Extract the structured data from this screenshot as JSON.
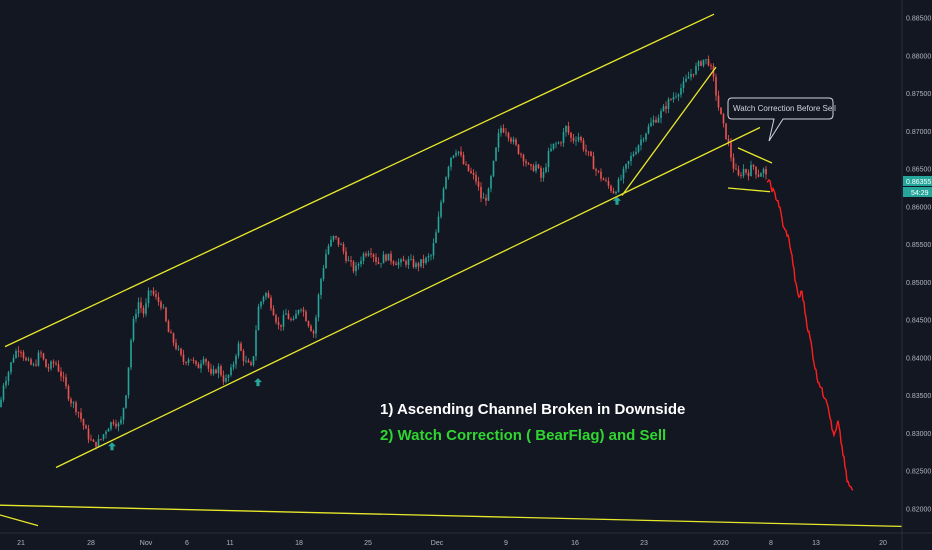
{
  "chart_data": {
    "type": "candlestick",
    "y_axis": {
      "ticks": [
        "0.88500",
        "0.88000",
        "0.87500",
        "0.87000",
        "0.86500",
        "0.86000",
        "0.85500",
        "0.85000",
        "0.84500",
        "0.84000",
        "0.83500",
        "0.83000",
        "0.82500",
        "0.82000"
      ],
      "range": [
        0.8175,
        0.8895
      ]
    },
    "x_axis": {
      "ticks": [
        "21",
        "28",
        "Nov",
        "6",
        "11",
        "18",
        "25",
        "Dec",
        "9",
        "16",
        "23",
        "2020",
        "8",
        "13",
        "20"
      ]
    },
    "price_badges": {
      "last_price": "0.86355",
      "countdown": "54:29"
    },
    "colors": {
      "background": "#131722",
      "up": "#26a69a",
      "down": "#ef5350",
      "trendline": "#e8e82a",
      "projection": "#ff1e1e",
      "arrow": "#26a69a"
    },
    "price_anchors": [
      [
        0,
        0.8335
      ],
      [
        3,
        0.8365
      ],
      [
        8,
        0.838
      ],
      [
        14,
        0.8405
      ],
      [
        20,
        0.8415
      ],
      [
        26,
        0.8395
      ],
      [
        34,
        0.8388
      ],
      [
        40,
        0.8408
      ],
      [
        47,
        0.8385
      ],
      [
        55,
        0.8395
      ],
      [
        62,
        0.8375
      ],
      [
        70,
        0.8345
      ],
      [
        78,
        0.833
      ],
      [
        86,
        0.8302
      ],
      [
        93,
        0.8285
      ],
      [
        100,
        0.829
      ],
      [
        107,
        0.8308
      ],
      [
        114,
        0.8318
      ],
      [
        120,
        0.8308
      ],
      [
        126,
        0.8355
      ],
      [
        132,
        0.8438
      ],
      [
        138,
        0.8475
      ],
      [
        144,
        0.8458
      ],
      [
        150,
        0.8492
      ],
      [
        156,
        0.8478
      ],
      [
        162,
        0.847
      ],
      [
        168,
        0.8435
      ],
      [
        176,
        0.8415
      ],
      [
        183,
        0.8395
      ],
      [
        190,
        0.8402
      ],
      [
        197,
        0.8385
      ],
      [
        204,
        0.8405
      ],
      [
        211,
        0.8375
      ],
      [
        218,
        0.8388
      ],
      [
        225,
        0.8368
      ],
      [
        232,
        0.8385
      ],
      [
        238,
        0.8418
      ],
      [
        245,
        0.8395
      ],
      [
        252,
        0.8385
      ],
      [
        258,
        0.8465
      ],
      [
        265,
        0.8488
      ],
      [
        272,
        0.8468
      ],
      [
        279,
        0.844
      ],
      [
        286,
        0.8458
      ],
      [
        293,
        0.8445
      ],
      [
        300,
        0.8472
      ],
      [
        307,
        0.845
      ],
      [
        314,
        0.8432
      ],
      [
        320,
        0.8498
      ],
      [
        327,
        0.8545
      ],
      [
        334,
        0.856
      ],
      [
        341,
        0.8548
      ],
      [
        348,
        0.8528
      ],
      [
        355,
        0.8515
      ],
      [
        362,
        0.8535
      ],
      [
        370,
        0.8545
      ],
      [
        378,
        0.8525
      ],
      [
        385,
        0.8535
      ],
      [
        392,
        0.853
      ],
      [
        400,
        0.8525
      ],
      [
        408,
        0.8528
      ],
      [
        416,
        0.8522
      ],
      [
        424,
        0.8528
      ],
      [
        431,
        0.8535
      ],
      [
        437,
        0.857
      ],
      [
        443,
        0.8625
      ],
      [
        450,
        0.8665
      ],
      [
        457,
        0.8678
      ],
      [
        464,
        0.8655
      ],
      [
        470,
        0.8645
      ],
      [
        476,
        0.8635
      ],
      [
        482,
        0.8608
      ],
      [
        488,
        0.8615
      ],
      [
        494,
        0.866
      ],
      [
        500,
        0.8705
      ],
      [
        506,
        0.8702
      ],
      [
        512,
        0.8688
      ],
      [
        518,
        0.8675
      ],
      [
        524,
        0.8665
      ],
      [
        530,
        0.8648
      ],
      [
        536,
        0.8655
      ],
      [
        542,
        0.8635
      ],
      [
        548,
        0.8668
      ],
      [
        554,
        0.8682
      ],
      [
        560,
        0.8685
      ],
      [
        566,
        0.8705
      ],
      [
        572,
        0.8688
      ],
      [
        578,
        0.8695
      ],
      [
        584,
        0.8678
      ],
      [
        590,
        0.8665
      ],
      [
        596,
        0.8648
      ],
      [
        602,
        0.8638
      ],
      [
        608,
        0.8628
      ],
      [
        614,
        0.862
      ],
      [
        620,
        0.8635
      ],
      [
        626,
        0.8652
      ],
      [
        632,
        0.8668
      ],
      [
        638,
        0.8682
      ],
      [
        645,
        0.8698
      ],
      [
        652,
        0.8712
      ],
      [
        660,
        0.8722
      ],
      [
        668,
        0.8738
      ],
      [
        676,
        0.875
      ],
      [
        684,
        0.8762
      ],
      [
        690,
        0.8775
      ],
      [
        697,
        0.8785
      ],
      [
        703,
        0.8795
      ],
      [
        709,
        0.8792
      ],
      [
        714,
        0.8765
      ],
      [
        718,
        0.8735
      ],
      [
        723,
        0.8708
      ],
      [
        728,
        0.8685
      ],
      [
        733,
        0.8655
      ],
      [
        738,
        0.8638
      ],
      [
        743,
        0.865
      ],
      [
        748,
        0.8645
      ],
      [
        753,
        0.8655
      ],
      [
        758,
        0.8642
      ],
      [
        763,
        0.865
      ],
      [
        767,
        0.8636
      ]
    ],
    "projection": [
      [
        767,
        0.8636
      ],
      [
        770,
        0.863
      ],
      [
        774,
        0.8618
      ],
      [
        778,
        0.8608
      ],
      [
        781,
        0.859
      ],
      [
        784,
        0.857
      ],
      [
        787,
        0.8565
      ],
      [
        790,
        0.855
      ],
      [
        793,
        0.8525
      ],
      [
        796,
        0.8495
      ],
      [
        799,
        0.848
      ],
      [
        802,
        0.8488
      ],
      [
        805,
        0.8462
      ],
      [
        808,
        0.8438
      ],
      [
        811,
        0.842
      ],
      [
        814,
        0.8395
      ],
      [
        817,
        0.8375
      ],
      [
        820,
        0.8365
      ],
      [
        823,
        0.8352
      ],
      [
        826,
        0.8348
      ],
      [
        829,
        0.8332
      ],
      [
        832,
        0.8305
      ],
      [
        835,
        0.8298
      ],
      [
        838,
        0.8315
      ],
      [
        841,
        0.829
      ],
      [
        844,
        0.8265
      ],
      [
        847,
        0.8238
      ],
      [
        850,
        0.8228
      ],
      [
        853,
        0.8225
      ]
    ],
    "projection_label": "",
    "trendlines": [
      {
        "name": "channel-upper",
        "points": [
          [
            5,
            0.8415
          ],
          [
            714,
            0.8855
          ]
        ]
      },
      {
        "name": "channel-lower",
        "points": [
          [
            56,
            0.8255
          ],
          [
            760,
            0.8705
          ]
        ]
      },
      {
        "name": "rally-support",
        "points": [
          [
            622,
            0.8615
          ],
          [
            716,
            0.8785
          ]
        ]
      },
      {
        "name": "flag-upper",
        "points": [
          [
            738,
            0.8678
          ],
          [
            772,
            0.8658
          ]
        ]
      },
      {
        "name": "flag-lower",
        "points": [
          [
            728,
            0.8625
          ],
          [
            770,
            0.862
          ]
        ]
      },
      {
        "name": "long-support",
        "points": [
          [
            0,
            0.8205
          ],
          [
            902,
            0.8177
          ]
        ]
      },
      {
        "name": "descending-fragment",
        "points": [
          [
            0,
            0.8192
          ],
          [
            38,
            0.8178
          ]
        ]
      }
    ],
    "arrows": [
      [
        112,
        0.8283
      ],
      [
        258,
        0.8368
      ],
      [
        617,
        0.8608
      ]
    ],
    "annotations": {
      "line1": "1)  Ascending Channel Broken in Downside",
      "line2": "2) Watch Correction ( BearFlag) and Sell",
      "callout": "Watch Correction Before Sell"
    }
  }
}
